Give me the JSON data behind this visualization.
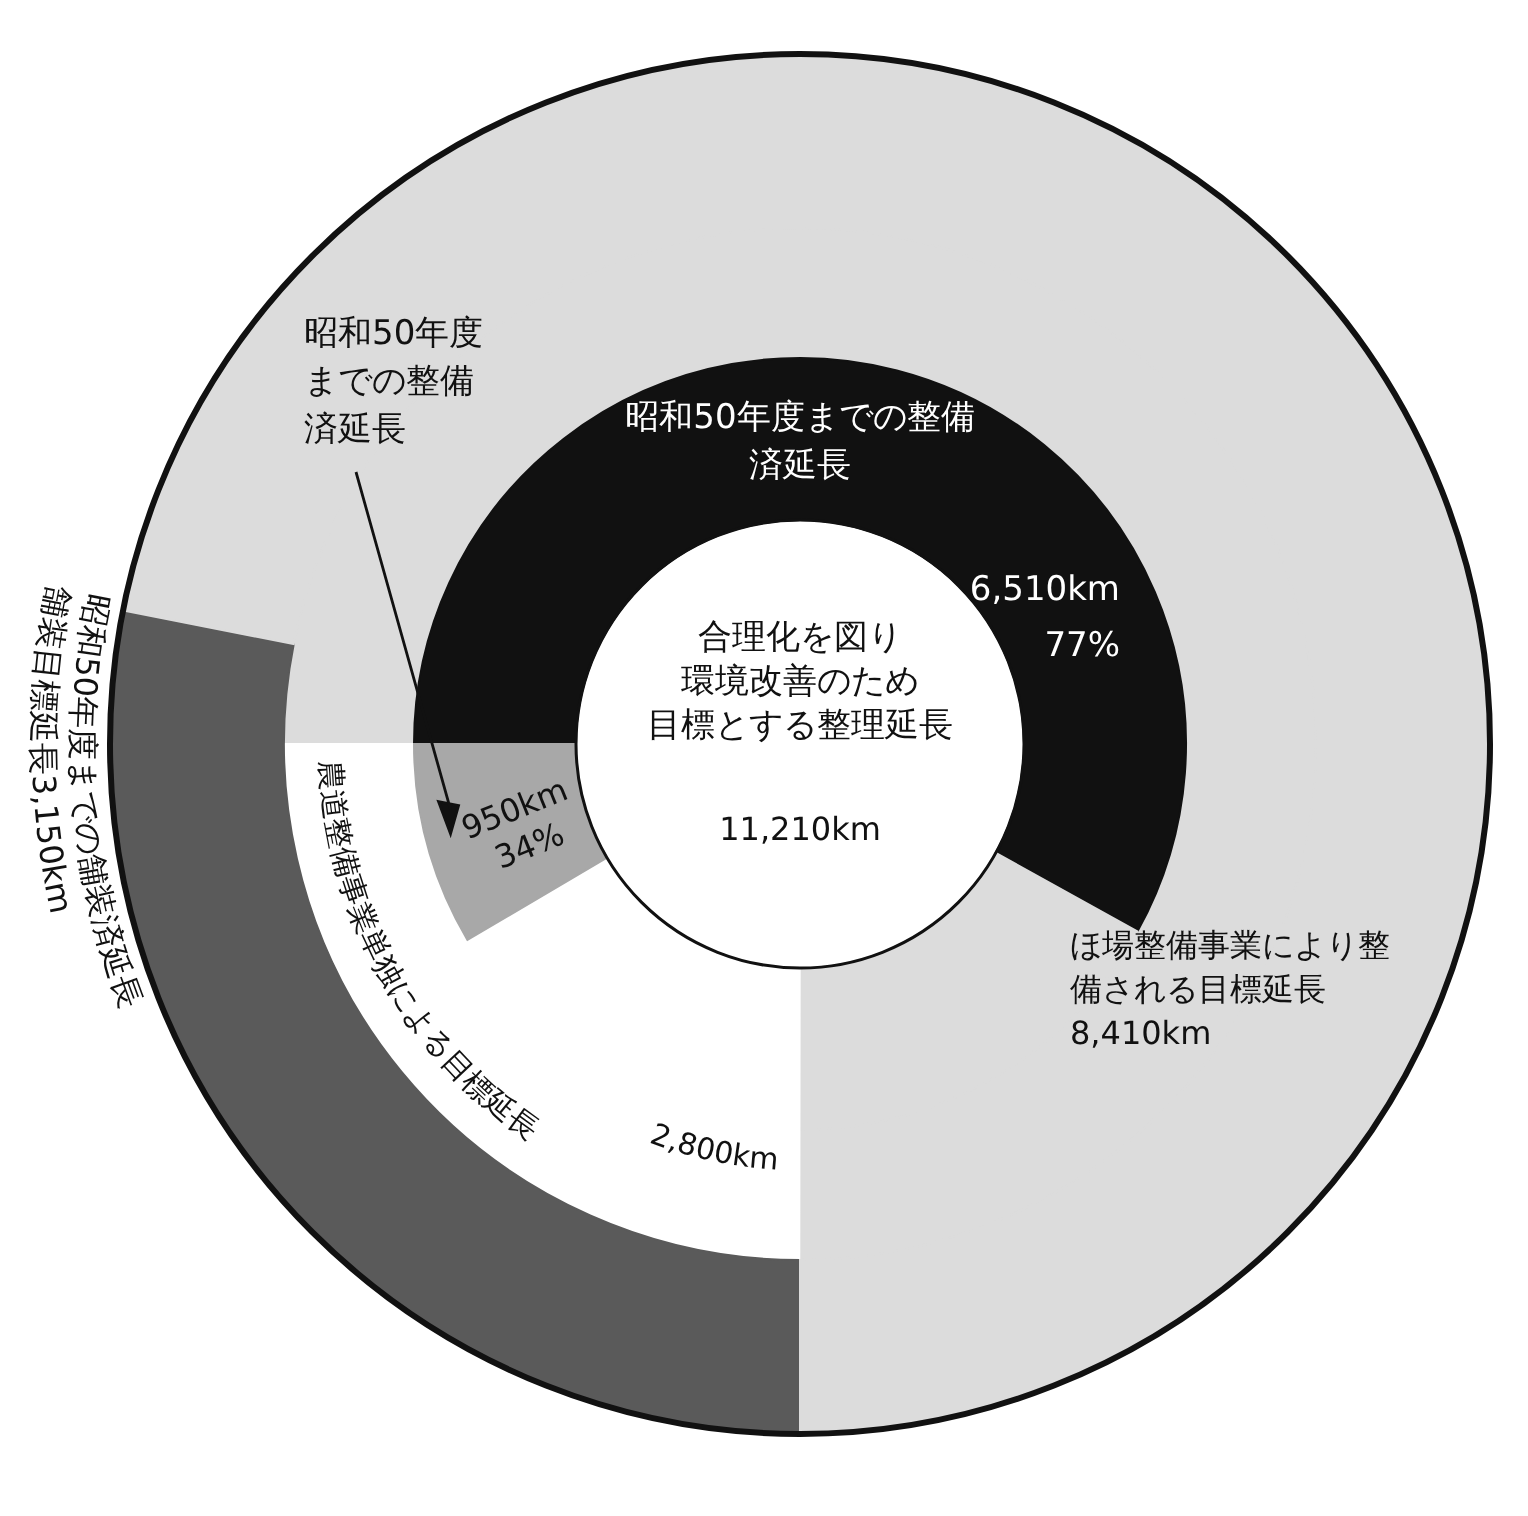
{
  "chart_data": [
    {
      "type": "donut",
      "categories": [
        "ほ場整備事業により整備される目標延長",
        "農道整備事業単独による目標延長"
      ],
      "values": [
        8410,
        2800
      ],
      "colors": [
        "#dcdcdc",
        "#ffffff"
      ],
      "value_labels": [
        "8,410km",
        "2,800km"
      ],
      "annotations": [
        "合理化を図り環境改善のため目標とする整理延長",
        "11,210km"
      ]
    },
    {
      "type": "donut",
      "categories": [
        "舗装目標延長",
        null
      ],
      "values": [
        3150,
        8060
      ],
      "colors": [
        "#5a5a5a",
        "#dcdcdc"
      ],
      "value_labels": [
        "3,150km",
        null
      ],
      "annotations": [
        "昭和50年度までの舗装済延長"
      ]
    },
    {
      "type": "donut",
      "categories": [
        "昭和50年度までの整備済延長",
        null,
        null,
        "昭和50年度までの整備済延長"
      ],
      "values": [
        6510,
        1900,
        1850,
        950
      ],
      "colors": [
        "#111111",
        "#dcdcdc",
        "#ffffff",
        "#a8a8a8"
      ],
      "value_labels": [
        "6,510km\n77%",
        null,
        null,
        "950km\n34%"
      ]
    }
  ]
}
